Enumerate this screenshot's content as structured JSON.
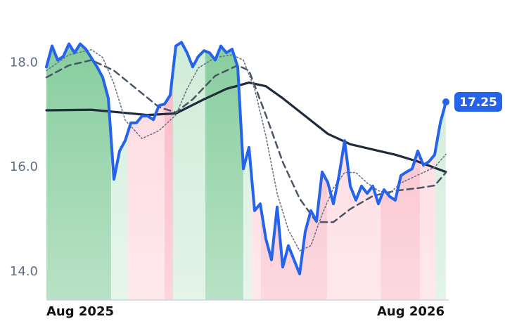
{
  "chart_data": {
    "type": "line",
    "xlim": [
      0,
      71
    ],
    "ylim": [
      13.46,
      19.2
    ],
    "xticks": [
      {
        "value": 0,
        "label": "Aug 2025"
      },
      {
        "value": 71,
        "label": "Aug 2026"
      }
    ],
    "yticks": [
      {
        "value": 14,
        "label": "14.0"
      },
      {
        "value": 16,
        "label": "16.0"
      },
      {
        "value": 18,
        "label": "18.0"
      }
    ],
    "grid": false,
    "regions": [
      {
        "start": 0,
        "end": 11.5,
        "color": "#7fca97"
      },
      {
        "start": 11.5,
        "end": 14.5,
        "color": "#d3eedb"
      },
      {
        "start": 14.5,
        "end": 21,
        "color": "#fdd6dd"
      },
      {
        "start": 21,
        "end": 22.5,
        "color": "#f9b3c1"
      },
      {
        "start": 22.5,
        "end": 28.25,
        "color": "#cdebd5"
      },
      {
        "start": 28.25,
        "end": 35,
        "color": "#7fca97"
      },
      {
        "start": 35,
        "end": 36.4,
        "color": "#d3eedb"
      },
      {
        "start": 36.4,
        "end": 38.1,
        "color": "#fdd6dd"
      },
      {
        "start": 38.1,
        "end": 49.9,
        "color": "#f9b8c5"
      },
      {
        "start": 49.9,
        "end": 59.4,
        "color": "#fdd6dd"
      },
      {
        "start": 59.4,
        "end": 66.4,
        "color": "#f9b8c5"
      },
      {
        "start": 66.4,
        "end": 69.1,
        "color": "#fdd6dd"
      },
      {
        "start": 69.1,
        "end": 71,
        "color": "#cdebd5"
      }
    ],
    "series": [
      {
        "color": "#1f2a3d",
        "style": "solid",
        "x": [
          0,
          8,
          13,
          18,
          23,
          28,
          32,
          36,
          39,
          42,
          46,
          50,
          54,
          58,
          62,
          66,
          71
        ],
        "values": [
          17.09,
          17.1,
          17.05,
          17.0,
          17.03,
          17.3,
          17.5,
          17.62,
          17.55,
          17.32,
          16.98,
          16.64,
          16.44,
          16.34,
          16.24,
          16.11,
          15.91
        ]
      },
      {
        "color": "#4b5568",
        "style": "dashed",
        "x": [
          0,
          4,
          8,
          12,
          16,
          20,
          23,
          26,
          30,
          34,
          36,
          39,
          42,
          45,
          48,
          51,
          54,
          58,
          62,
          66,
          69,
          71
        ],
        "values": [
          17.72,
          17.95,
          18.05,
          17.85,
          17.5,
          17.15,
          17.05,
          17.3,
          17.75,
          17.95,
          17.85,
          17.0,
          16.1,
          15.4,
          14.95,
          14.95,
          15.2,
          15.45,
          15.55,
          15.6,
          15.65,
          15.9
        ]
      },
      {
        "color": "#6b7485",
        "style": "dotted",
        "x": [
          0,
          4,
          8,
          10,
          12,
          14,
          17,
          20,
          23,
          25,
          27,
          30,
          33,
          35,
          37,
          39,
          41,
          43,
          45,
          47,
          49,
          51,
          53,
          55,
          57,
          59,
          61,
          63,
          66,
          69,
          71
        ],
        "values": [
          17.85,
          18.15,
          18.25,
          18.1,
          17.6,
          16.9,
          16.55,
          16.7,
          17.0,
          17.5,
          17.9,
          18.1,
          18.15,
          18.05,
          17.5,
          16.6,
          15.5,
          14.8,
          14.4,
          14.5,
          15.1,
          15.6,
          15.9,
          15.9,
          15.7,
          15.55,
          15.5,
          15.7,
          15.85,
          16.0,
          16.25
        ]
      },
      {
        "color": "#2563eb",
        "style": "main",
        "x": [
          0,
          1,
          2,
          3,
          4,
          5,
          6,
          7,
          8,
          9,
          10,
          11,
          12,
          13,
          14,
          15,
          16,
          17,
          18,
          19,
          20,
          21,
          22,
          23,
          24,
          25,
          26,
          27,
          28,
          29,
          30,
          31,
          32,
          33,
          34,
          35,
          36,
          37,
          38,
          39,
          40,
          41,
          42,
          43,
          44,
          45,
          46,
          47,
          48,
          49,
          50,
          51,
          52,
          53,
          54,
          55,
          56,
          57,
          58,
          59,
          60,
          61,
          62,
          63,
          64,
          65,
          66,
          67,
          68,
          69,
          70,
          71
        ],
        "values": [
          17.92,
          18.32,
          18.05,
          18.12,
          18.36,
          18.19,
          18.36,
          18.26,
          18.09,
          17.92,
          17.72,
          17.32,
          15.77,
          16.31,
          16.51,
          16.85,
          16.85,
          16.98,
          16.98,
          16.91,
          17.18,
          17.21,
          17.38,
          18.32,
          18.39,
          18.19,
          17.92,
          18.12,
          18.23,
          18.19,
          18.05,
          18.32,
          18.19,
          18.26,
          17.92,
          15.97,
          16.38,
          15.17,
          15.3,
          14.63,
          14.23,
          15.24,
          14.09,
          14.5,
          14.23,
          13.96,
          14.77,
          15.17,
          14.97,
          15.91,
          15.71,
          15.3,
          15.84,
          16.51,
          15.64,
          15.37,
          15.64,
          15.5,
          15.64,
          15.3,
          15.57,
          15.44,
          15.37,
          15.84,
          15.91,
          15.97,
          16.31,
          16.04,
          16.11,
          16.24,
          16.85,
          17.25
        ]
      }
    ]
  }
}
